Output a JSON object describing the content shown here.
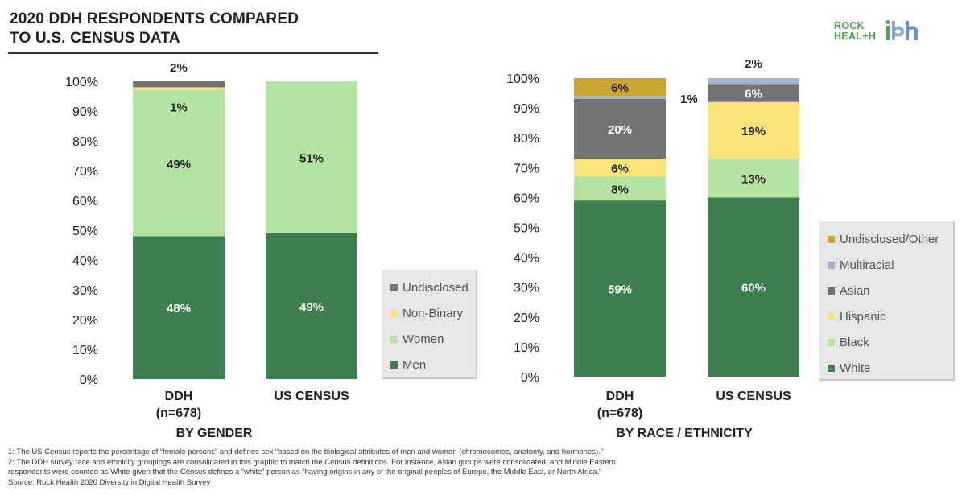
{
  "title_lines": [
    "2020 DDH RESPONDENTS COMPARED",
    "TO U.S. CENSUS DATA"
  ],
  "logo": {
    "text_line1": "ROCK",
    "text_line2": "HEAL+H",
    "mark": "ibh"
  },
  "colors": {
    "men_white": "#3d7f4f",
    "women_black": "#b4e3a4",
    "non_binary_hispanic": "#fbe37c",
    "undisclosed_asian": "#737373",
    "multiracial": "#a5b5cf",
    "undisclosed_other": "#c9a531"
  },
  "chart_data": [
    {
      "type": "bar",
      "stacked": true,
      "title": "BY GENDER",
      "categories": [
        "DDH\n(n=678)",
        "US CENSUS"
      ],
      "yticks": [
        "0%",
        "10%",
        "20%",
        "30%",
        "40%",
        "50%",
        "60%",
        "70%",
        "80%",
        "90%",
        "100%"
      ],
      "ylim": [
        0,
        100
      ],
      "series": [
        {
          "name": "Men",
          "values": [
            48,
            49
          ],
          "labels": [
            "48%",
            "49%"
          ]
        },
        {
          "name": "Women",
          "values": [
            49,
            51
          ],
          "labels": [
            "49%",
            "51%"
          ]
        },
        {
          "name": "Non-Binary",
          "values": [
            1,
            0
          ],
          "labels": [
            "1%",
            ""
          ]
        },
        {
          "name": "Undisclosed",
          "values": [
            2,
            0
          ],
          "labels": [
            "2%",
            ""
          ]
        }
      ],
      "legend": [
        "Undisclosed",
        "Non-Binary",
        "Women",
        "Men"
      ],
      "legend_position": "bottom-right"
    },
    {
      "type": "bar",
      "stacked": true,
      "title": "BY RACE / ETHNICITY",
      "categories": [
        "DDH\n(n=678)",
        "US CENSUS"
      ],
      "yticks": [
        "0%",
        "10%",
        "20%",
        "30%",
        "40%",
        "50%",
        "60%",
        "70%",
        "80%",
        "90%",
        "100%"
      ],
      "ylim": [
        0,
        100
      ],
      "series": [
        {
          "name": "White",
          "values": [
            59,
            60
          ],
          "labels": [
            "59%",
            "60%"
          ]
        },
        {
          "name": "Black",
          "values": [
            8,
            13
          ],
          "labels": [
            "8%",
            "13%"
          ]
        },
        {
          "name": "Hispanic",
          "values": [
            6,
            19
          ],
          "labels": [
            "6%",
            "19%"
          ]
        },
        {
          "name": "Asian",
          "values": [
            20,
            6
          ],
          "labels": [
            "20%",
            "6%"
          ]
        },
        {
          "name": "Multiracial",
          "values": [
            1,
            2
          ],
          "labels": [
            "1%",
            "2%"
          ]
        },
        {
          "name": "Undisclosed/Other",
          "values": [
            6,
            0
          ],
          "labels": [
            "6%",
            ""
          ]
        }
      ],
      "legend": [
        "Undisclosed/Other",
        "Multiracial",
        "Asian",
        "Hispanic",
        "Black",
        "White"
      ],
      "legend_position": "right"
    }
  ],
  "footnotes": [
    "1: The US Census reports the percentage of “female persons” and defines sex “based on the biological attributes of men and women (chromosomes, anatomy, and hormones).\"",
    "2: The DDH survey race and ethnicity groupings are consolidated in this graphic to match the Census definitions. For instance, Asian groups were consolidated, and Middle Eastern",
    "respondents were counted as White given that the Census defines a “white” person as “having origins in any of the original peoples of Europe, the Middle East, or North Africa.”",
    "Source: Rock Health 2020 Diversity in Digital Health Survey"
  ]
}
